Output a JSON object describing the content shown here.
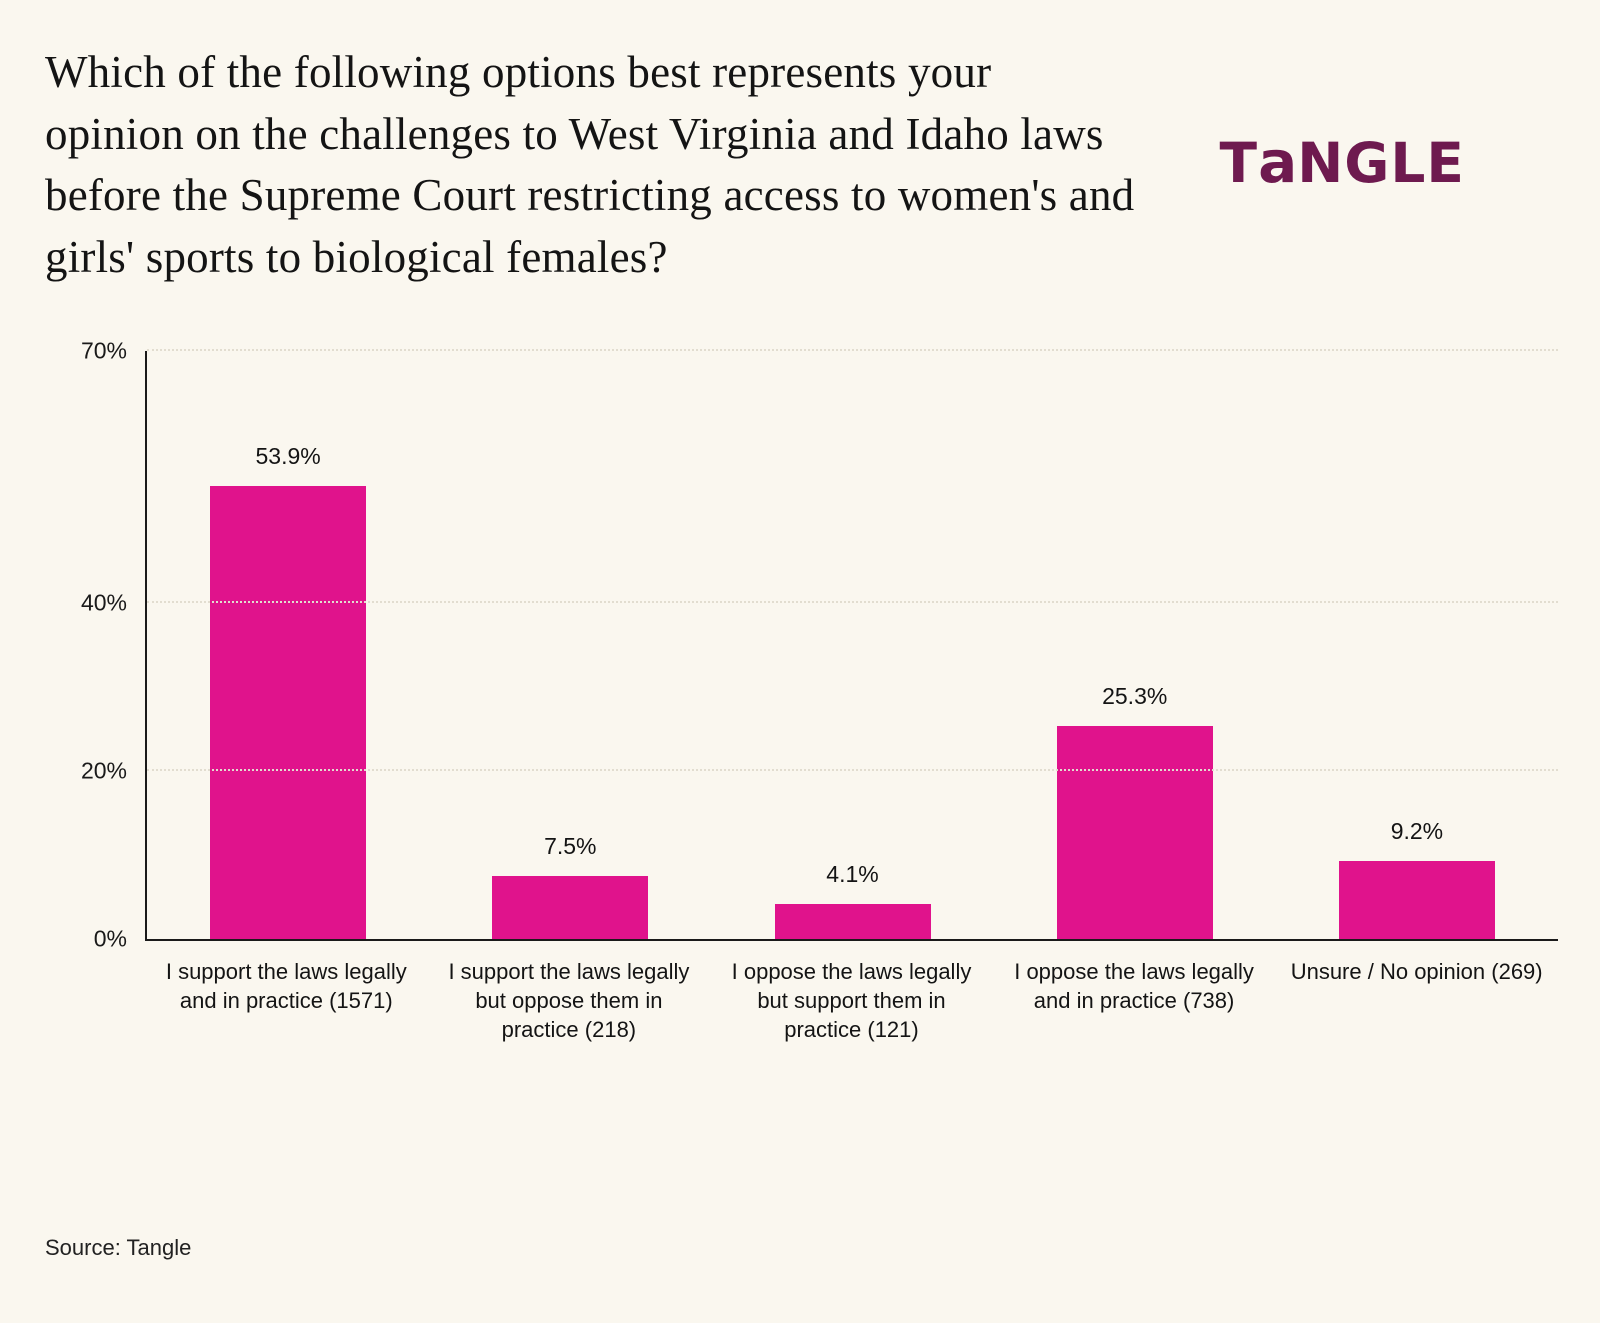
{
  "title": "Which of the following options best represents your opinion on the challenges to West Virginia and Idaho laws before the Supreme Court restricting access to women's and girls' sports to biological females?",
  "logo": {
    "t": "T",
    "a": "a",
    "ngle": "NGLE",
    "color": "#6e1a4f"
  },
  "source": "Source: Tangle",
  "chart_data": {
    "type": "bar",
    "title": "Which of the following options best represents your opinion on the challenges to West Virginia and Idaho laws before the Supreme Court restricting access to women's and girls' sports to biological females?",
    "categories": [
      "I support the laws legally and in practice (1571)",
      "I support the laws legally but oppose them in practice (218)",
      "I oppose the laws legally but support them in practice (121)",
      "I oppose the laws legally and in practice (738)",
      "Unsure / No opinion (269)"
    ],
    "values": [
      53.9,
      7.5,
      4.1,
      25.3,
      9.2
    ],
    "value_labels": [
      "53.9%",
      "7.5%",
      "4.1%",
      "25.3%",
      "9.2%"
    ],
    "counts": [
      1571,
      218,
      121,
      738,
      269
    ],
    "xlabel": "",
    "ylabel": "",
    "ylim": [
      0,
      70
    ],
    "yticks": [
      {
        "v": 0,
        "label": "0%"
      },
      {
        "v": 20,
        "label": "20%"
      },
      {
        "v": 40,
        "label": "40%"
      },
      {
        "v": 70,
        "label": "70%"
      }
    ],
    "bar_color": "#e0138c",
    "grid": "horizontal dotted lines at y ticks",
    "legend": "none",
    "background": "#faf7ef"
  }
}
